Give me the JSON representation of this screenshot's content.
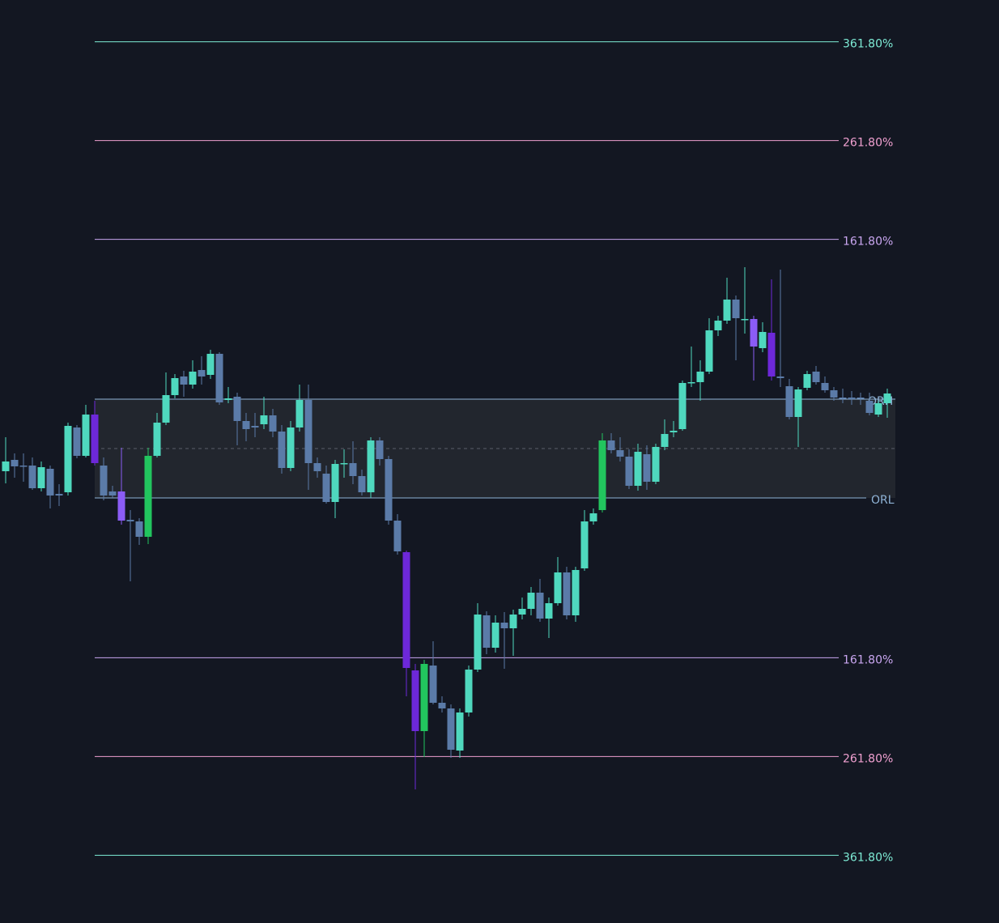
{
  "chart_data": {
    "type": "candlestick",
    "ylim": [
      0,
      1140
    ],
    "background": "#131722",
    "open": [
      558,
      572,
      565,
      565,
      537,
      561,
      530,
      532,
      612,
      577,
      628,
      565,
      533,
      533,
      498,
      496,
      477,
      577,
      618,
      652,
      675,
      665,
      683,
      677,
      703,
      646,
      650,
      620,
      614,
      616,
      627,
      607,
      562,
      612,
      646,
      568,
      555,
      520,
      567,
      568,
      552,
      532,
      596,
      573,
      497,
      458,
      312,
      237,
      318,
      272,
      265,
      213,
      260,
      313,
      380,
      340,
      371,
      364,
      381,
      388,
      408,
      376,
      395,
      433,
      380,
      438,
      496,
      510,
      596,
      584,
      576,
      540,
      579,
      545,
      588,
      606,
      610,
      667,
      668,
      681,
      732,
      744,
      770,
      745,
      746,
      710,
      729,
      675,
      663,
      625,
      661,
      681,
      667,
      658,
      649,
      649,
      649,
      645,
      628,
      642
    ],
    "high": [
      600,
      580,
      580,
      575,
      570,
      565,
      542,
      618,
      615,
      640,
      645,
      575,
      540,
      587,
      510,
      500,
      587,
      630,
      680,
      678,
      682,
      695,
      700,
      708,
      705,
      662,
      655,
      630,
      630,
      650,
      635,
      615,
      620,
      665,
      665,
      575,
      565,
      572,
      585,
      595,
      560,
      600,
      600,
      577,
      505,
      460,
      320,
      325,
      348,
      280,
      270,
      265,
      318,
      395,
      385,
      380,
      384,
      387,
      402,
      415,
      425,
      402,
      452,
      440,
      440,
      510,
      512,
      605,
      605,
      600,
      585,
      592,
      590,
      592,
      622,
      620,
      670,
      712,
      695,
      747,
      750,
      797,
      775,
      810,
      750,
      742,
      795,
      807,
      672,
      662,
      682,
      688,
      675,
      662,
      660,
      657,
      655,
      655,
      645,
      660
    ],
    "low": [
      543,
      550,
      545,
      535,
      533,
      512,
      515,
      528,
      574,
      575,
      565,
      522,
      525,
      492,
      422,
      467,
      468,
      575,
      615,
      648,
      650,
      660,
      665,
      672,
      640,
      642,
      590,
      595,
      600,
      610,
      600,
      555,
      558,
      607,
      535,
      550,
      518,
      500,
      550,
      542,
      528,
      525,
      565,
      492,
      455,
      280,
      165,
      205,
      270,
      260,
      204,
      204,
      255,
      310,
      332,
      334,
      314,
      330,
      375,
      380,
      372,
      352,
      392,
      375,
      372,
      435,
      492,
      507,
      580,
      570,
      536,
      534,
      535,
      542,
      584,
      600,
      608,
      662,
      645,
      678,
      725,
      740,
      695,
      728,
      670,
      705,
      670,
      662,
      622,
      588,
      658,
      665,
      655,
      645,
      642,
      640,
      640,
      627,
      625,
      624
    ],
    "close": [
      570,
      564,
      564,
      537,
      563,
      528,
      528,
      614,
      577,
      628,
      568,
      528,
      528,
      497,
      496,
      477,
      577,
      618,
      652,
      673,
      665,
      681,
      675,
      703,
      643,
      648,
      620,
      610,
      612,
      627,
      607,
      562,
      612,
      646,
      568,
      558,
      520,
      567,
      568,
      552,
      532,
      596,
      573,
      497,
      459,
      315,
      237,
      320,
      272,
      265,
      214,
      260,
      313,
      381,
      340,
      371,
      364,
      381,
      388,
      408,
      376,
      395,
      433,
      380,
      436,
      496,
      506,
      596,
      584,
      576,
      540,
      582,
      545,
      588,
      604,
      608,
      667,
      668,
      681,
      732,
      744,
      770,
      747,
      746,
      712,
      730,
      675,
      673,
      625,
      659,
      678,
      668,
      658,
      649,
      648,
      647,
      648,
      630,
      642,
      654
    ],
    "colors": [
      "#4fd8be",
      "#5b7ba8",
      "#5b7ba8",
      "#5b7ba8",
      "#4fd8be",
      "#5b7ba8",
      "#5b7ba8",
      "#4fd8be",
      "#5b7ba8",
      "#4fd8be",
      "#6d28d9",
      "#5b7ba8",
      "#5b7ba8",
      "#8b5cf6",
      "#5b7ba8",
      "#5b7ba8",
      "#22c55e",
      "#4fd8be",
      "#4fd8be",
      "#4fd8be",
      "#5b7ba8",
      "#4fd8be",
      "#5b7ba8",
      "#4fd8be",
      "#5b7ba8",
      "#4fd8be",
      "#5b7ba8",
      "#5b7ba8",
      "#5b7ba8",
      "#4fd8be",
      "#5b7ba8",
      "#5b7ba8",
      "#4fd8be",
      "#4fd8be",
      "#5b7ba8",
      "#5b7ba8",
      "#5b7ba8",
      "#4fd8be",
      "#4fd8be",
      "#5b7ba8",
      "#5b7ba8",
      "#4fd8be",
      "#5b7ba8",
      "#5b7ba8",
      "#5b7ba8",
      "#6d28d9",
      "#6d28d9",
      "#22c55e",
      "#5b7ba8",
      "#5b7ba8",
      "#5b7ba8",
      "#4fd8be",
      "#4fd8be",
      "#4fd8be",
      "#5b7ba8",
      "#4fd8be",
      "#5b7ba8",
      "#4fd8be",
      "#4fd8be",
      "#4fd8be",
      "#5b7ba8",
      "#4fd8be",
      "#4fd8be",
      "#5b7ba8",
      "#4fd8be",
      "#4fd8be",
      "#4fd8be",
      "#22c55e",
      "#5b7ba8",
      "#5b7ba8",
      "#5b7ba8",
      "#4fd8be",
      "#5b7ba8",
      "#4fd8be",
      "#4fd8be",
      "#4fd8be",
      "#4fd8be",
      "#4fd8be",
      "#4fd8be",
      "#4fd8be",
      "#4fd8be",
      "#4fd8be",
      "#5b7ba8",
      "#4fd8be",
      "#8b5cf6",
      "#4fd8be",
      "#6d28d9",
      "#5b7ba8",
      "#5b7ba8",
      "#4fd8be",
      "#4fd8be",
      "#5b7ba8",
      "#5b7ba8",
      "#5b7ba8",
      "#5b7ba8",
      "#5b7ba8",
      "#5b7ba8",
      "#5b7ba8",
      "#4fd8be",
      "#4fd8be"
    ],
    "orh": {
      "value": 647,
      "label": "ORH",
      "color": "#8fb3d6"
    },
    "orl": {
      "value": 525,
      "label": "ORL",
      "color": "#8fb3d6"
    },
    "range_fill": "#22262e",
    "levels_above": [
      {
        "value": 161.8,
        "label": "161.80%",
        "color": "#c9a6f0"
      },
      {
        "value": 261.8,
        "label": "261.80%",
        "color": "#f0a0d0"
      },
      {
        "value": 361.8,
        "label": "361.80%",
        "color": "#7eecd6"
      }
    ],
    "levels_below": [
      {
        "value": 161.8,
        "label": "161.80%",
        "color": "#c9a6f0"
      },
      {
        "value": 261.8,
        "label": "261.80%",
        "color": "#f0a0d0"
      },
      {
        "value": 361.8,
        "label": "361.80%",
        "color": "#7eecd6"
      }
    ]
  }
}
